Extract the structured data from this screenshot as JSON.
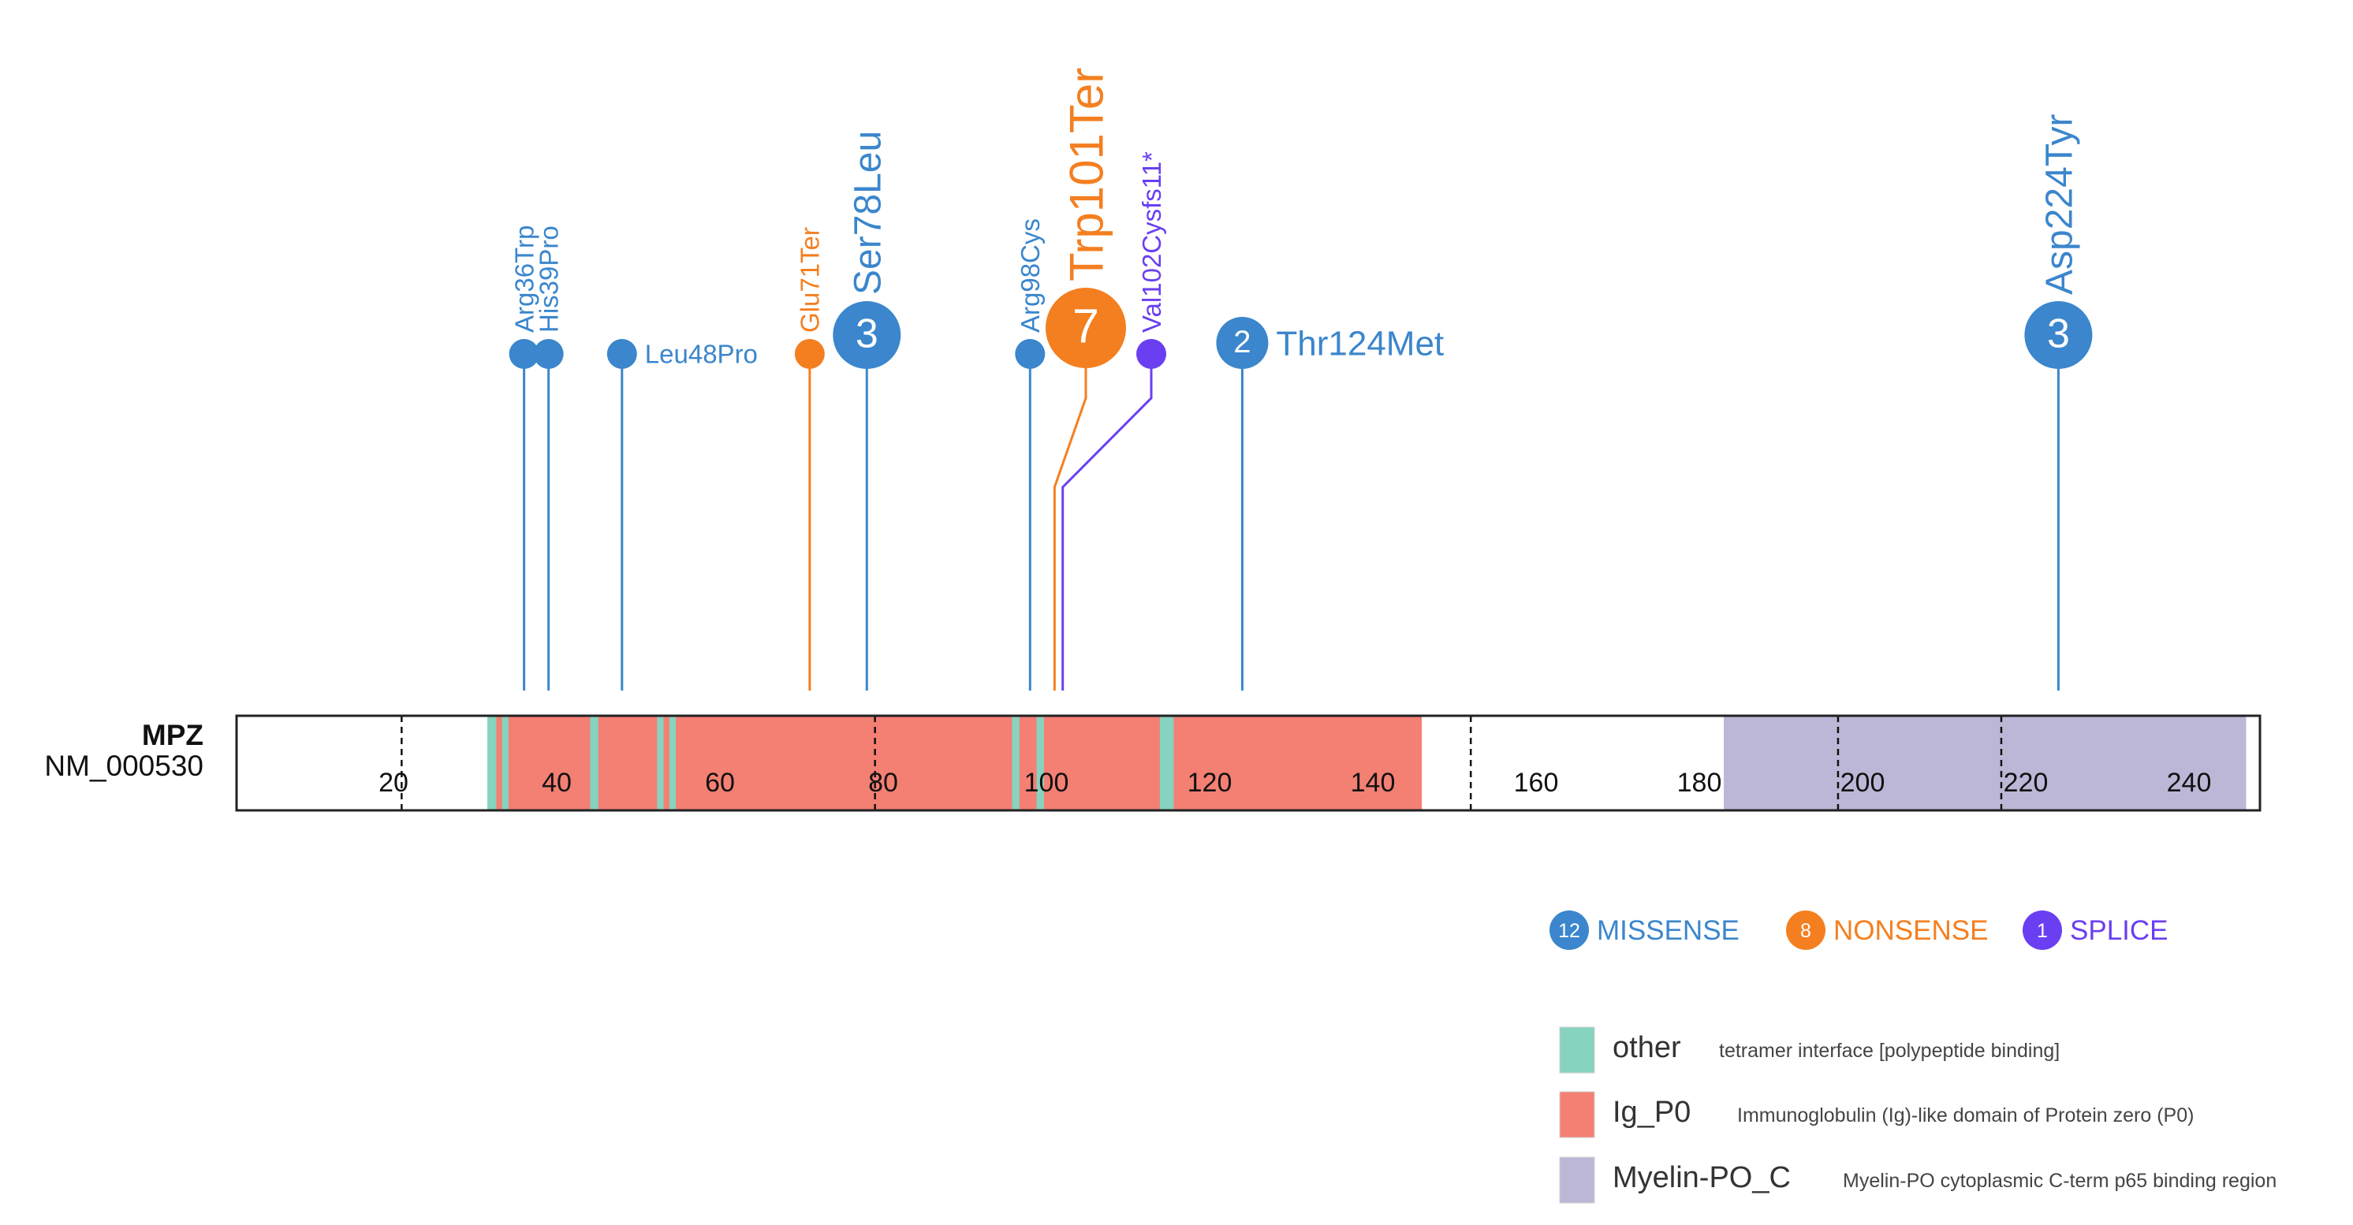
{
  "colors": {
    "missense": "#3b86cc",
    "nonsense": "#f47f20",
    "splice": "#6a3ff2",
    "other": "#86d3c0",
    "ig_p0": "#f47f73",
    "myelin": "#bcb7d6",
    "axis_text": "#111111",
    "border": "#222222"
  },
  "chart_data": {
    "type": "lollipop",
    "gene": "MPZ",
    "transcript": "NM_000530",
    "protein_range": [
      1,
      248
    ],
    "ticks": [
      20,
      40,
      60,
      80,
      100,
      120,
      140,
      160,
      180,
      200,
      220,
      240
    ],
    "dashed_boundaries": [
      21,
      79,
      152,
      197,
      217
    ],
    "domains": [
      {
        "name": "Ig_P0",
        "start": 32,
        "end": 146,
        "color_key": "ig_p0"
      },
      {
        "name": "Myelin-PO_C",
        "start": 183,
        "end": 247,
        "color_key": "myelin"
      }
    ],
    "features": [
      {
        "name": "other",
        "start": 31.5,
        "end": 32.6,
        "color_key": "other"
      },
      {
        "name": "other",
        "start": 33.3,
        "end": 34.1,
        "color_key": "other"
      },
      {
        "name": "other",
        "start": 44.1,
        "end": 45.1,
        "color_key": "other"
      },
      {
        "name": "other",
        "start": 52.3,
        "end": 53.1,
        "color_key": "other"
      },
      {
        "name": "other",
        "start": 53.8,
        "end": 54.6,
        "color_key": "other"
      },
      {
        "name": "other",
        "start": 95.8,
        "end": 96.7,
        "color_key": "other"
      },
      {
        "name": "other",
        "start": 98.8,
        "end": 99.7,
        "color_key": "other"
      },
      {
        "name": "other",
        "start": 113.9,
        "end": 115.6,
        "color_key": "other"
      }
    ],
    "mutations": [
      {
        "label": "Arg36Trp",
        "position": 36,
        "count": 1,
        "type": "missense"
      },
      {
        "label": "His39Pro",
        "position": 39,
        "count": 1,
        "type": "missense"
      },
      {
        "label": "Leu48Pro",
        "position": 48,
        "count": 1,
        "type": "missense"
      },
      {
        "label": "Glu71Ter",
        "position": 71,
        "count": 1,
        "type": "nonsense"
      },
      {
        "label": "Ser78Leu",
        "position": 78,
        "count": 3,
        "type": "missense"
      },
      {
        "label": "Arg98Cys",
        "position": 98,
        "count": 1,
        "type": "missense"
      },
      {
        "label": "Trp101Ter",
        "position": 101,
        "count": 7,
        "type": "nonsense"
      },
      {
        "label": "Val102Cysfs11*",
        "position": 102,
        "count": 1,
        "type": "splice"
      },
      {
        "label": "Thr124Met",
        "position": 124,
        "count": 2,
        "type": "missense"
      },
      {
        "label": "Asp224Tyr",
        "position": 224,
        "count": 3,
        "type": "missense"
      }
    ],
    "mutation_summary": [
      {
        "type": "missense",
        "count": 12,
        "label": "MISSENSE"
      },
      {
        "type": "nonsense",
        "count": 8,
        "label": "NONSENSE"
      },
      {
        "type": "splice",
        "count": 1,
        "label": "SPLICE"
      }
    ],
    "domain_legend": [
      {
        "name": "other",
        "description": "tetramer interface [polypeptide binding]",
        "color_key": "other"
      },
      {
        "name": "Ig_P0",
        "description": "Immunoglobulin (Ig)-like domain of Protein zero (P0)",
        "color_key": "ig_p0"
      },
      {
        "name": "Myelin-PO_C",
        "description": "Myelin-PO cytoplasmic C-term p65 binding region",
        "color_key": "myelin"
      }
    ]
  }
}
